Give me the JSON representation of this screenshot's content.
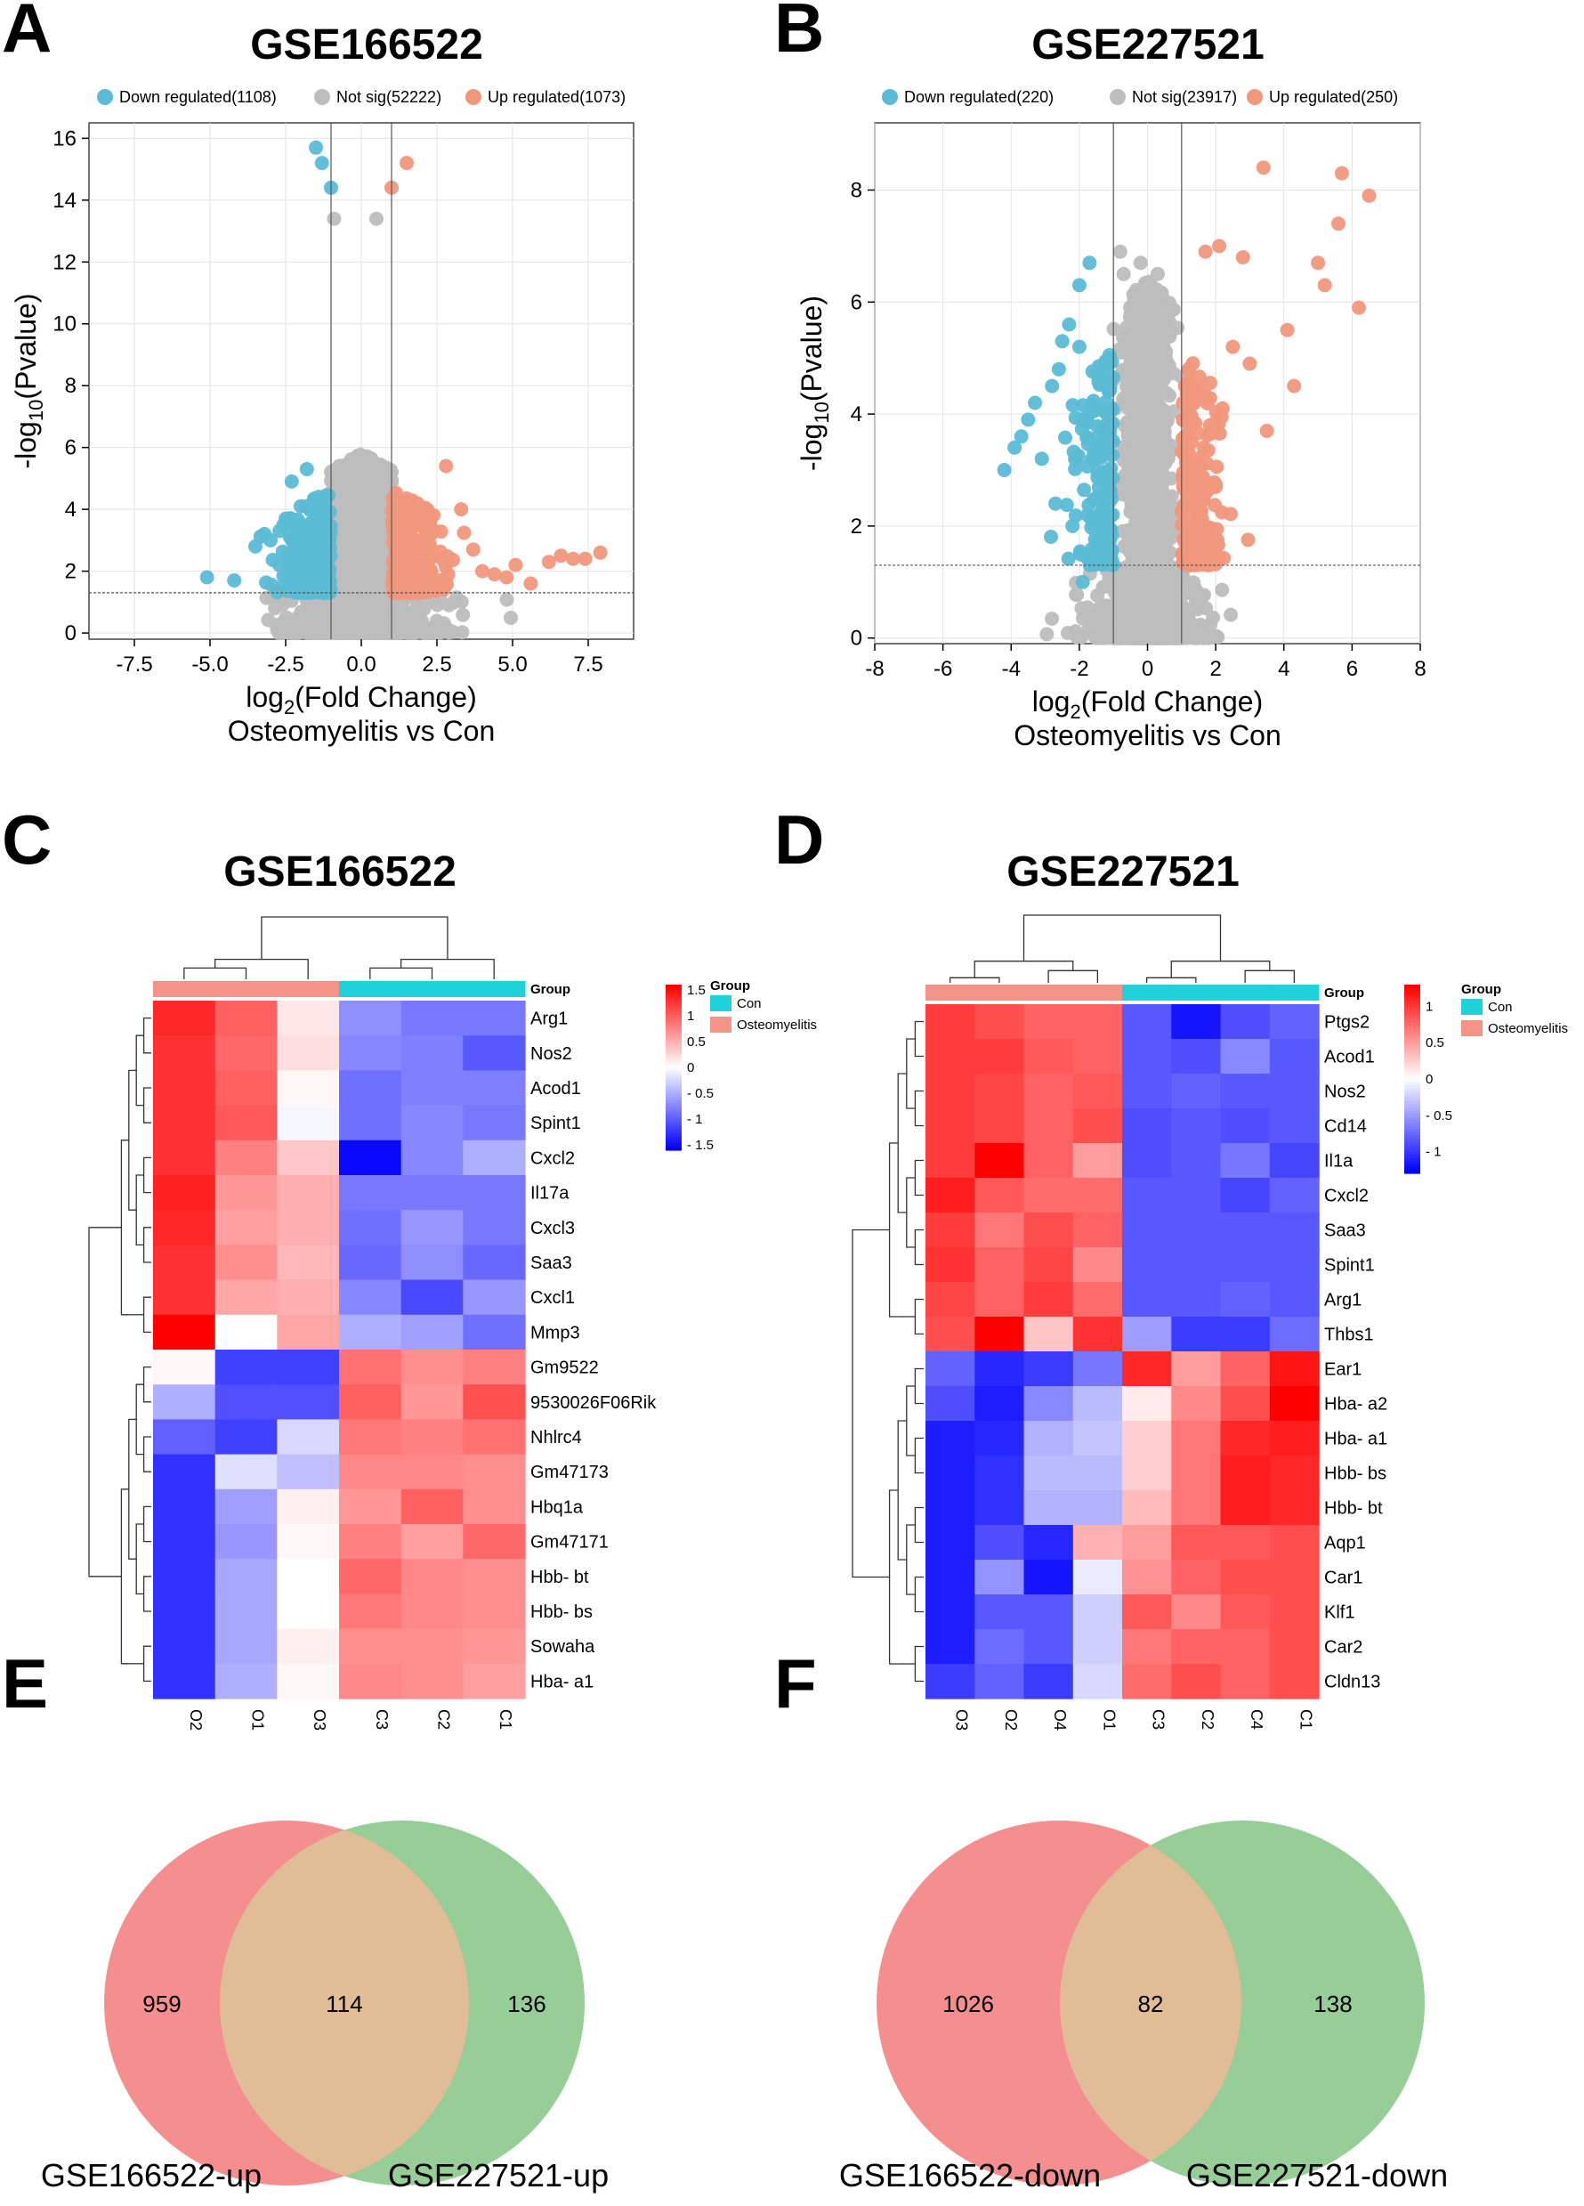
{
  "panels": {
    "A": "A",
    "B": "B",
    "C": "C",
    "D": "D",
    "E": "E",
    "F": "F"
  },
  "chart_data": [
    {
      "id": "A",
      "type": "scatter",
      "title": "GSE166522",
      "xlabel_main": "log",
      "xlabel_sub": "2",
      "xlabel_tail": "(Fold Change)",
      "xlabel2": "Osteomyelitis vs Con",
      "ylabel_main": "-log",
      "ylabel_sub": "10",
      "ylabel_tail": "(Pvalue)",
      "xlim": [
        -9.0,
        9.0
      ],
      "ylim": [
        -0.2,
        16.5
      ],
      "xticks": [
        -7.5,
        -5.0,
        -2.5,
        0.0,
        2.5,
        5.0,
        7.5
      ],
      "xtick_labels": [
        "-7.5",
        "-5.0",
        "-2.5",
        "0.0",
        "2.5",
        "5.0",
        "7.5"
      ],
      "yticks": [
        0,
        2,
        4,
        6,
        8,
        10,
        12,
        14,
        16
      ],
      "ytick_labels": [
        "0",
        "2",
        "4",
        "6",
        "8",
        "10",
        "12",
        "14",
        "16"
      ],
      "fc_threshold": 1,
      "p_threshold": 1.3,
      "legend": [
        {
          "label": "Down regulated(1108)",
          "color": "#5bbad5"
        },
        {
          "label": "Not sig(52222)",
          "color": "#bdbdbd"
        },
        {
          "label": "Up regulated(1073)",
          "color": "#f0977c"
        }
      ],
      "cloud": {
        "xsd": 0.9,
        "ymax": 5.8,
        "ns": 1500,
        "nd": 220,
        "nu": 220
      },
      "points_down": [
        [
          -1.5,
          15.7
        ],
        [
          -1.3,
          15.2
        ],
        [
          -1.0,
          14.4
        ],
        [
          -2.3,
          4.9
        ],
        [
          -1.8,
          5.3
        ],
        [
          -3.2,
          3.2
        ],
        [
          -3.5,
          2.8
        ],
        [
          -4.2,
          1.7
        ],
        [
          -5.1,
          1.8
        ],
        [
          -2.7,
          3.3
        ],
        [
          -2.0,
          4.1
        ],
        [
          -3.0,
          3.0
        ],
        [
          -2.5,
          3.7
        ]
      ],
      "points_up": [
        [
          1.5,
          15.2
        ],
        [
          1.0,
          14.4
        ],
        [
          2.8,
          5.4
        ],
        [
          3.3,
          4.0
        ],
        [
          4.4,
          1.9
        ],
        [
          5.1,
          2.2
        ],
        [
          5.6,
          1.6
        ],
        [
          6.2,
          2.3
        ],
        [
          6.6,
          2.5
        ],
        [
          7.0,
          2.4
        ],
        [
          7.4,
          2.4
        ],
        [
          7.9,
          2.6
        ],
        [
          3.7,
          2.7
        ],
        [
          4.0,
          2.0
        ],
        [
          4.8,
          1.8
        ]
      ],
      "points_ns": [
        [
          -0.9,
          13.4
        ],
        [
          0.5,
          13.4
        ]
      ]
    },
    {
      "id": "B",
      "type": "scatter",
      "title": "GSE227521",
      "xlabel_main": "log",
      "xlabel_sub": "2",
      "xlabel_tail": "(Fold Change)",
      "xlabel2": "Osteomyelitis vs Con",
      "ylabel_main": "-log",
      "ylabel_sub": "10",
      "ylabel_tail": "(Pvalue)",
      "xlim": [
        -8,
        8
      ],
      "ylim": [
        -0.1,
        9.2
      ],
      "xticks": [
        -8,
        -6,
        -4,
        -2,
        0,
        2,
        4,
        6,
        8
      ],
      "xtick_labels": [
        "-8",
        "-6",
        "-4",
        "-2",
        "0",
        "2",
        "4",
        "6",
        "8"
      ],
      "yticks": [
        0,
        2,
        4,
        6,
        8
      ],
      "ytick_labels": [
        "0",
        "2",
        "4",
        "6",
        "8"
      ],
      "fc_threshold": 1,
      "p_threshold": 1.3,
      "legend": [
        {
          "label": "Down regulated(220)",
          "color": "#5bbad5"
        },
        {
          "label": "Not sig(23917)",
          "color": "#bdbdbd"
        },
        {
          "label": "Up regulated(250)",
          "color": "#f0977c"
        }
      ],
      "cloud": {
        "xsd": 0.6,
        "ymax": 6.4,
        "ns": 1600,
        "nd": 180,
        "nu": 200
      },
      "points_down": [
        [
          -4.2,
          3.0
        ],
        [
          -3.9,
          3.4
        ],
        [
          -3.7,
          3.6
        ],
        [
          -3.5,
          3.9
        ],
        [
          -3.1,
          3.2
        ],
        [
          -2.8,
          4.5
        ],
        [
          -2.6,
          4.8
        ],
        [
          -2.3,
          5.6
        ],
        [
          -2.0,
          6.3
        ],
        [
          -1.7,
          6.7
        ],
        [
          -2.7,
          2.4
        ],
        [
          -2.2,
          2.0
        ],
        [
          -1.9,
          1.0
        ],
        [
          -3.3,
          4.2
        ],
        [
          -2.5,
          5.3
        ],
        [
          -2.0,
          5.2
        ]
      ],
      "points_up": [
        [
          3.4,
          8.4
        ],
        [
          5.7,
          8.3
        ],
        [
          6.5,
          7.9
        ],
        [
          5.6,
          7.4
        ],
        [
          5.0,
          6.7
        ],
        [
          5.2,
          6.3
        ],
        [
          6.2,
          5.9
        ],
        [
          4.1,
          5.5
        ],
        [
          4.3,
          4.5
        ],
        [
          3.5,
          3.7
        ],
        [
          2.8,
          6.8
        ],
        [
          2.1,
          7.0
        ],
        [
          1.7,
          6.9
        ],
        [
          2.5,
          5.2
        ],
        [
          3.0,
          4.9
        ],
        [
          2.2,
          4.1
        ],
        [
          1.6,
          1.8
        ],
        [
          2.0,
          2.7
        ]
      ],
      "points_ns": [
        [
          -0.8,
          6.9
        ],
        [
          -0.7,
          6.5
        ],
        [
          0.3,
          6.5
        ],
        [
          -0.2,
          6.7
        ]
      ]
    },
    {
      "id": "C",
      "type": "heatmap",
      "title": "GSE166522",
      "row_labels": [
        "Arg1",
        "Nos2",
        "Acod1",
        "Spint1",
        "Cxcl2",
        "Il17a",
        "Cxcl3",
        "Saa3",
        "Cxcl1",
        "Mmp3",
        "Gm9522",
        "9530026F06Rik",
        "Nhlrc4",
        "Gm47173",
        "Hbq1a",
        "Gm47171",
        "Hbb- bt",
        "Hbb- bs",
        "Sowaha",
        "Hba- a1"
      ],
      "col_labels": [
        "O2",
        "O1",
        "O3",
        "C3",
        "C2",
        "C1"
      ],
      "col_groups": [
        "Osteomyelitis",
        "Osteomyelitis",
        "Osteomyelitis",
        "Con",
        "Con",
        "Con"
      ],
      "values": [
        [
          1.35,
          1.0,
          0.15,
          -0.7,
          -0.85,
          -0.85
        ],
        [
          1.3,
          0.95,
          0.2,
          -0.75,
          -0.8,
          -1.05
        ],
        [
          1.3,
          1.0,
          0.05,
          -0.9,
          -0.8,
          -0.8
        ],
        [
          1.3,
          1.05,
          -0.05,
          -0.9,
          -0.75,
          -0.85
        ],
        [
          1.3,
          0.8,
          0.35,
          -1.55,
          -0.75,
          -0.5
        ],
        [
          1.4,
          0.65,
          0.5,
          -0.85,
          -0.85,
          -0.85
        ],
        [
          1.35,
          0.6,
          0.5,
          -0.9,
          -0.65,
          -0.85
        ],
        [
          1.3,
          0.7,
          0.45,
          -0.95,
          -0.7,
          -0.95
        ],
        [
          1.3,
          0.55,
          0.5,
          -0.75,
          -1.15,
          -0.65
        ],
        [
          1.6,
          0.0,
          0.55,
          -0.5,
          -0.6,
          -0.9
        ],
        [
          0.05,
          -1.2,
          -1.2,
          0.9,
          0.7,
          0.8
        ],
        [
          -0.5,
          -1.1,
          -1.1,
          1.0,
          0.65,
          1.1
        ],
        [
          -1.0,
          -1.2,
          -0.25,
          0.85,
          0.8,
          0.9
        ],
        [
          -1.3,
          -0.2,
          -0.4,
          0.75,
          0.75,
          0.7
        ],
        [
          -1.3,
          -0.6,
          0.1,
          0.65,
          1.0,
          0.7
        ],
        [
          -1.3,
          -0.65,
          0.05,
          0.8,
          0.6,
          0.95
        ],
        [
          -1.3,
          -0.55,
          0.0,
          0.95,
          0.75,
          0.7
        ],
        [
          -1.3,
          -0.55,
          0.0,
          0.85,
          0.75,
          0.7
        ],
        [
          -1.3,
          -0.55,
          0.1,
          0.7,
          0.7,
          0.65
        ],
        [
          -1.3,
          -0.5,
          0.05,
          0.75,
          0.7,
          0.6
        ]
      ],
      "vmin": -1.6,
      "vmax": 1.6,
      "group_header": "Group",
      "colorbar_ticks": [
        1.5,
        1,
        0.5,
        0,
        -0.5,
        -1,
        -1.5
      ],
      "colorbar_tick_labels": [
        "1.5",
        "1",
        "0.5",
        "0",
        "- 0.5",
        "- 1",
        "- 1.5"
      ],
      "legend_title": "Group",
      "legend": [
        {
          "label": "Con",
          "color": "#1fd1d8"
        },
        {
          "label": "Osteomyelitis",
          "color": "#f49489"
        }
      ],
      "col_leaves": [
        0.22,
        0.46,
        0.66
      ],
      "col_leaves2": [
        0.12,
        0.4,
        0.58
      ],
      "row_split": 10
    },
    {
      "id": "D",
      "type": "heatmap",
      "title": "GSE227521",
      "row_labels": [
        "Ptgs2",
        "Acod1",
        "Nos2",
        "Cd14",
        "Il1a",
        "Cxcl2",
        "Saa3",
        "Spint1",
        "Arg1",
        "Thbs1",
        "Ear1",
        "Hba- a2",
        "Hba- a1",
        "Hbb- bs",
        "Hbb- bt",
        "Aqp1",
        "Car1",
        "Klf1",
        "Car2",
        "Cldn13"
      ],
      "col_labels": [
        "O3",
        "O2",
        "O4",
        "O1",
        "C3",
        "C2",
        "C4",
        "C1"
      ],
      "col_groups": [
        "Osteomyelitis",
        "Osteomyelitis",
        "Osteomyelitis",
        "Osteomyelitis",
        "Con",
        "Con",
        "Con",
        "Con"
      ],
      "values": [
        [
          1.0,
          0.9,
          0.8,
          0.8,
          -0.85,
          -1.2,
          -0.9,
          -0.8
        ],
        [
          1.0,
          1.0,
          0.85,
          0.8,
          -0.85,
          -0.9,
          -0.6,
          -0.85
        ],
        [
          1.0,
          0.95,
          0.8,
          0.85,
          -0.85,
          -0.8,
          -0.85,
          -0.85
        ],
        [
          1.0,
          0.95,
          0.8,
          0.9,
          -0.9,
          -0.85,
          -0.9,
          -0.85
        ],
        [
          1.0,
          1.3,
          0.8,
          0.5,
          -0.9,
          -0.85,
          -0.7,
          -0.95
        ],
        [
          1.15,
          0.85,
          0.75,
          0.75,
          -0.85,
          -0.85,
          -0.95,
          -0.8
        ],
        [
          1.0,
          0.7,
          0.9,
          0.8,
          -0.85,
          -0.85,
          -0.85,
          -0.85
        ],
        [
          1.05,
          0.8,
          0.95,
          0.6,
          -0.85,
          -0.85,
          -0.85,
          -0.85
        ],
        [
          0.95,
          0.8,
          1.0,
          0.75,
          -0.85,
          -0.85,
          -0.8,
          -0.85
        ],
        [
          0.9,
          1.3,
          0.3,
          1.05,
          -0.5,
          -1.0,
          -1.0,
          -0.75
        ],
        [
          -0.8,
          -1.1,
          -1.0,
          -0.7,
          1.1,
          0.5,
          0.8,
          1.2
        ],
        [
          -0.9,
          -1.15,
          -0.6,
          -0.35,
          0.1,
          0.6,
          0.9,
          1.45
        ],
        [
          -1.15,
          -1.1,
          -0.4,
          -0.3,
          0.25,
          0.7,
          1.1,
          1.15
        ],
        [
          -1.15,
          -1.05,
          -0.35,
          -0.35,
          0.25,
          0.7,
          1.15,
          1.1
        ],
        [
          -1.15,
          -1.05,
          -0.4,
          -0.4,
          0.35,
          0.7,
          1.15,
          1.1
        ],
        [
          -1.15,
          -0.9,
          -1.1,
          0.4,
          0.5,
          0.85,
          0.85,
          0.9
        ],
        [
          -1.15,
          -0.55,
          -1.2,
          -0.1,
          0.55,
          0.8,
          0.9,
          0.9
        ],
        [
          -1.15,
          -0.85,
          -0.85,
          -0.25,
          0.85,
          0.6,
          0.85,
          0.9
        ],
        [
          -1.15,
          -0.75,
          -0.85,
          -0.25,
          0.7,
          0.8,
          0.8,
          0.9
        ],
        [
          -1.0,
          -0.8,
          -1.0,
          -0.2,
          0.75,
          0.9,
          0.8,
          0.9
        ]
      ],
      "vmin": -1.3,
      "vmax": 1.3,
      "group_header": "Group",
      "colorbar_ticks": [
        1,
        0.5,
        0,
        -0.5,
        -1
      ],
      "colorbar_tick_labels": [
        "1",
        "0.5",
        "0",
        "- 0.5",
        "- 1"
      ],
      "legend_title": "Group",
      "legend": [
        {
          "label": "Con",
          "color": "#1fd1d8"
        },
        {
          "label": "Osteomyelitis",
          "color": "#f49489"
        }
      ],
      "col_leaves": [
        0.2,
        0.4,
        0.62
      ],
      "col_leaves2": [
        0.12,
        0.35,
        0.55
      ],
      "row_split": 10
    },
    {
      "id": "E",
      "type": "venn",
      "sets": [
        "GSE166522-up",
        "GSE227521-up"
      ],
      "only_a": "959",
      "overlap": "114",
      "only_b": "136",
      "colors": [
        "#f58e8e",
        "#8cc98c"
      ]
    },
    {
      "id": "F",
      "type": "venn",
      "sets": [
        "GSE166522-down",
        "GSE227521-down"
      ],
      "only_a": "1026",
      "overlap": "82",
      "only_b": "138",
      "colors": [
        "#f58e8e",
        "#8cc98c"
      ]
    }
  ]
}
